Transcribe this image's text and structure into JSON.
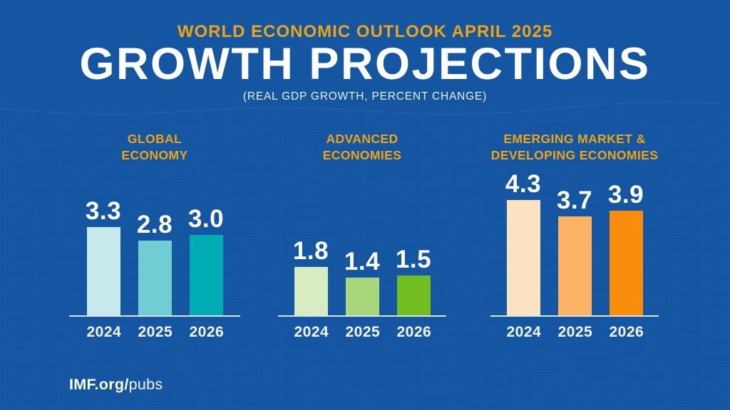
{
  "header": {
    "kicker": "WORLD ECONOMIC OUTLOOK APRIL 2025",
    "title": "GROWTH PROJECTIONS",
    "subtitle": "(REAL GDP GROWTH, PERCENT CHANGE)"
  },
  "footer": {
    "brand_bold": "IMF.org/",
    "brand_light": "pubs"
  },
  "colors": {
    "background": "#1556A2",
    "texture_line": "#6FA0DC",
    "gold": "#F0A412",
    "text_white": "#FFFFFF",
    "axis": "#D9E2EA"
  },
  "chart_data": {
    "type": "bar",
    "title": "GROWTH PROJECTIONS",
    "subtitle": "(REAL GDP GROWTH, PERCENT CHANGE)",
    "categories": [
      "2024",
      "2025",
      "2026"
    ],
    "ylim": [
      0,
      4.5
    ],
    "grid": false,
    "legend": "none",
    "unit": "percent change, real GDP growth",
    "groups": [
      {
        "name": "GLOBAL ECONOMY",
        "name_lines": [
          "GLOBAL",
          "ECONOMY"
        ],
        "values": [
          3.3,
          2.8,
          3.0
        ],
        "labels": [
          "3.3",
          "2.8",
          "3.0"
        ],
        "bar_colors": [
          "#C8E9EB",
          "#6FCDD3",
          "#00ACB4"
        ]
      },
      {
        "name": "ADVANCED ECONOMIES",
        "name_lines": [
          "ADVANCED",
          "ECONOMIES"
        ],
        "values": [
          1.8,
          1.4,
          1.5
        ],
        "labels": [
          "1.8",
          "1.4",
          "1.5"
        ],
        "bar_colors": [
          "#D8ECC3",
          "#A8D67A",
          "#72BE20"
        ]
      },
      {
        "name": "EMERGING MARKET & DEVELOPING ECONOMIES",
        "name_lines": [
          "EMERGING MARKET &",
          "DEVELOPING ECONOMIES"
        ],
        "values": [
          4.3,
          3.7,
          3.9
        ],
        "labels": [
          "4.3",
          "3.7",
          "3.9"
        ],
        "bar_colors": [
          "#FBE3C2",
          "#FCB365",
          "#F88D0C"
        ]
      }
    ]
  }
}
